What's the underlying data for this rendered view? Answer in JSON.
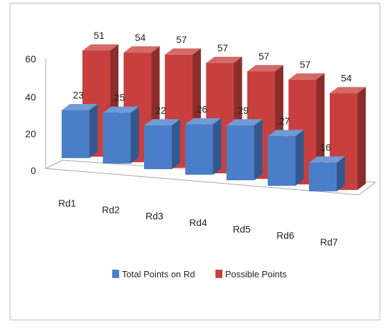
{
  "chart_data": {
    "type": "bar",
    "categories": [
      "Rd1",
      "Rd2",
      "Rd3",
      "Rd4",
      "Rd5",
      "Rd6",
      "Rd7"
    ],
    "series": [
      {
        "name": "Total Points on Rd",
        "values": [
          23,
          25,
          22,
          26,
          29,
          27,
          16
        ],
        "color": "#4a7ec9"
      },
      {
        "name": "Possible Points",
        "values": [
          51,
          54,
          57,
          57,
          57,
          57,
          54
        ],
        "color": "#c8403d"
      }
    ],
    "y_ticks": [
      "0",
      "20",
      "40",
      "60"
    ],
    "ylim": [
      0,
      60
    ],
    "style": "3d-clustered-depth",
    "legend_position": "bottom",
    "grid": false
  }
}
